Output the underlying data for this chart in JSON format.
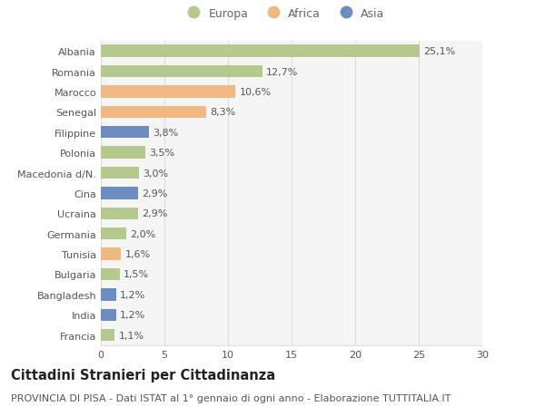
{
  "countries": [
    "Albania",
    "Romania",
    "Marocco",
    "Senegal",
    "Filippine",
    "Polonia",
    "Macedonia d/N.",
    "Cina",
    "Ucraina",
    "Germania",
    "Tunisia",
    "Bulgaria",
    "Bangladesh",
    "India",
    "Francia"
  ],
  "values": [
    25.1,
    12.7,
    10.6,
    8.3,
    3.8,
    3.5,
    3.0,
    2.9,
    2.9,
    2.0,
    1.6,
    1.5,
    1.2,
    1.2,
    1.1
  ],
  "labels": [
    "25,1%",
    "12,7%",
    "10,6%",
    "8,3%",
    "3,8%",
    "3,5%",
    "3,0%",
    "2,9%",
    "2,9%",
    "2,0%",
    "1,6%",
    "1,5%",
    "1,2%",
    "1,2%",
    "1,1%"
  ],
  "continents": [
    "Europa",
    "Europa",
    "Africa",
    "Africa",
    "Asia",
    "Europa",
    "Europa",
    "Asia",
    "Europa",
    "Europa",
    "Africa",
    "Europa",
    "Asia",
    "Asia",
    "Europa"
  ],
  "colors": {
    "Europa": "#b5c98e",
    "Africa": "#f0b984",
    "Asia": "#6b8dbf"
  },
  "xlim": [
    0,
    30
  ],
  "xticks": [
    0,
    5,
    10,
    15,
    20,
    25,
    30
  ],
  "background_color": "#ffffff",
  "plot_background": "#f5f5f5",
  "grid_color": "#dddddd",
  "title": "Cittadini Stranieri per Cittadinanza",
  "subtitle": "PROVINCIA DI PISA - Dati ISTAT al 1° gennaio di ogni anno - Elaborazione TUTTITALIA.IT",
  "title_fontsize": 10.5,
  "subtitle_fontsize": 8,
  "label_fontsize": 8,
  "tick_fontsize": 8,
  "legend_fontsize": 9,
  "bar_height": 0.6
}
